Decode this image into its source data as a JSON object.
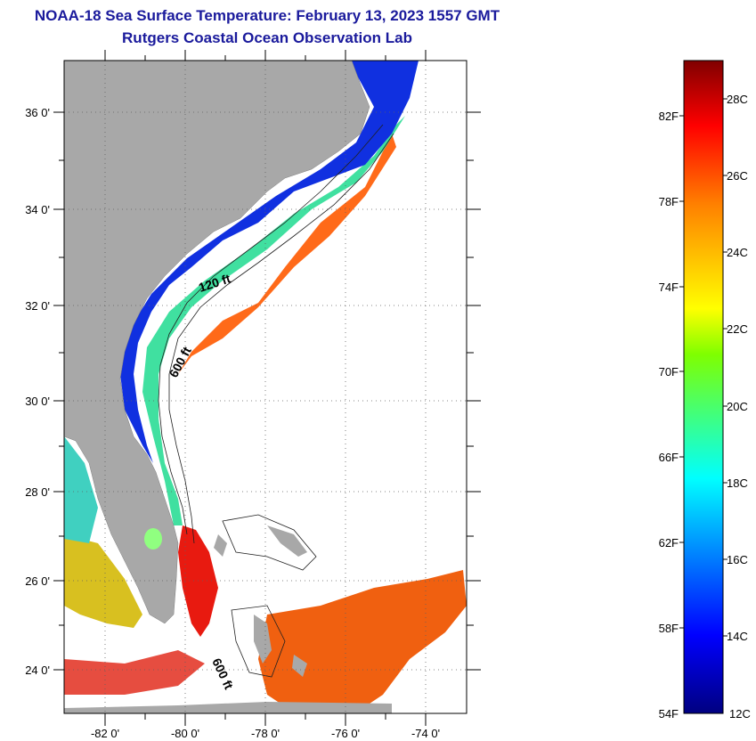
{
  "title": "NOAA-18 Sea Surface Temperature:  February 13, 2023 1557 GMT",
  "subtitle": "Rutgers Coastal Ocean Observation Lab",
  "map": {
    "lat_labels": [
      "36 0'",
      "34 0'",
      "32 0'",
      "30 0'",
      "28 0'",
      "26 0'",
      "24 0'"
    ],
    "lat_values": [
      36,
      34,
      32,
      30,
      28,
      26,
      24
    ],
    "lon_labels": [
      "-82 0'",
      "-80 0'",
      "-78 0'",
      "-76 0'",
      "-74 0'"
    ],
    "lon_values": [
      -82,
      -80,
      -78,
      -76,
      -74
    ],
    "lat_range": [
      23,
      37
    ],
    "lon_range": [
      -83,
      -73
    ],
    "contour_labels": [
      "120 ft",
      "600 ft",
      "600 ft"
    ]
  },
  "colorbar": {
    "fahrenheit_labels": [
      "82F",
      "78F",
      "74F",
      "70F",
      "66F",
      "62F",
      "58F",
      "54F"
    ],
    "celsius_labels": [
      "28C",
      "26C",
      "24C",
      "22C",
      "20C",
      "18C",
      "16C",
      "14C",
      "12C"
    ],
    "min_c": 12,
    "max_c": 29
  },
  "colors": {
    "title": "#1a1a9c",
    "land": "#a8a8a8",
    "cold": "#0000c8",
    "warm": "#ff3a00"
  }
}
